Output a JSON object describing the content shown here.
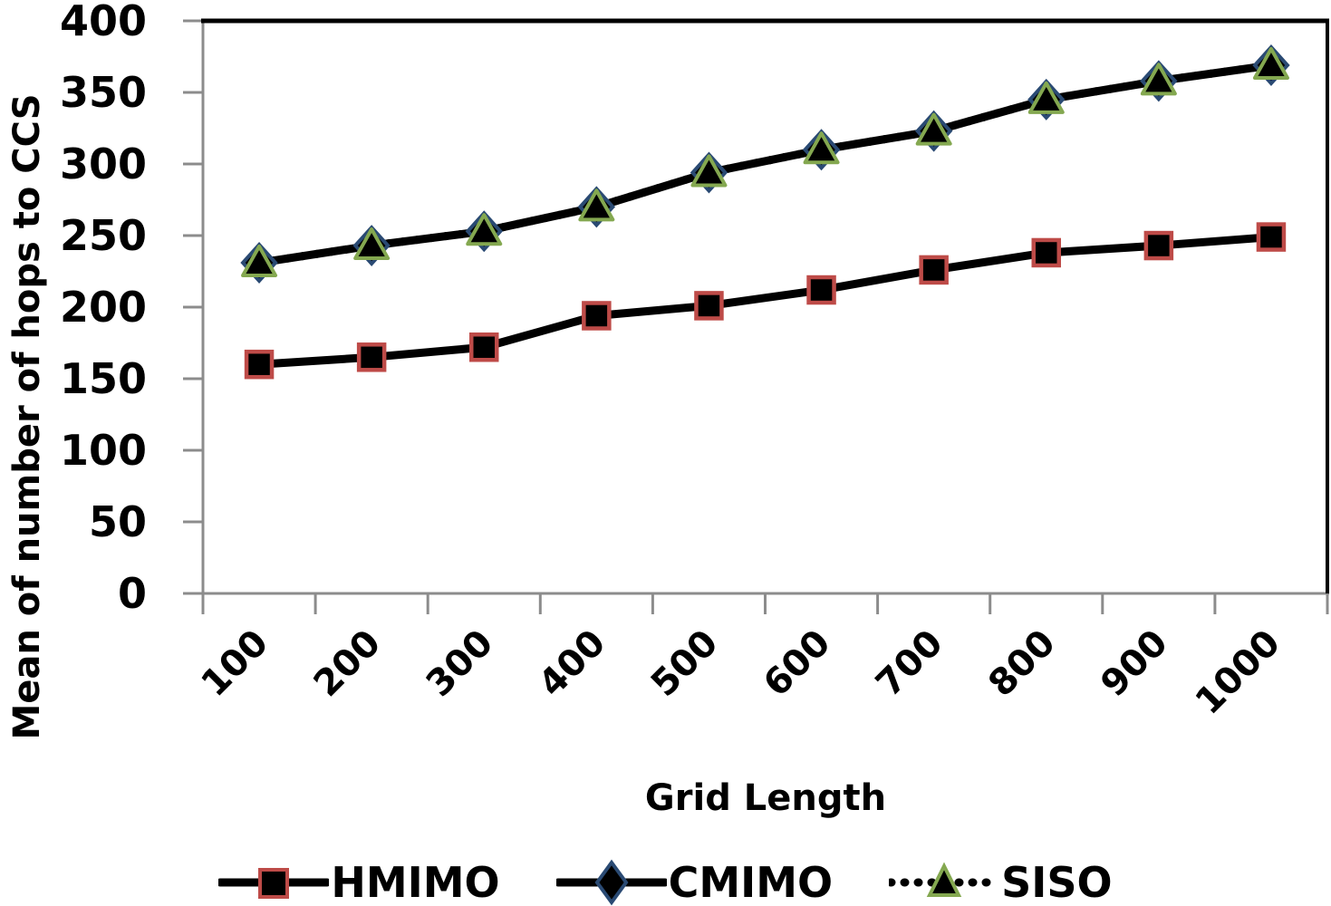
{
  "chart_data": {
    "type": "line",
    "title": "",
    "xlabel": "Grid Length",
    "ylabel": "Mean of number of hops to CCS",
    "x_categories": [
      "100",
      "200",
      "300",
      "400",
      "500",
      "600",
      "700",
      "800",
      "900",
      "1000"
    ],
    "ylim": [
      0,
      400
    ],
    "y_ticks": [
      0,
      50,
      100,
      150,
      200,
      250,
      300,
      350,
      400
    ],
    "grid": false,
    "legend_position": "bottom",
    "series": [
      {
        "name": "HMIMO",
        "marker": "square",
        "marker_border": "#BE4B48",
        "marker_fill": "#000000",
        "line_style": "solid",
        "line_color": "#000000",
        "values": [
          160,
          165,
          172,
          194,
          201,
          212,
          226,
          238,
          243,
          249
        ]
      },
      {
        "name": "CMIMO",
        "marker": "diamond",
        "marker_border": "#2A4A73",
        "marker_fill": "#000000",
        "line_style": "solid",
        "line_color": "#000000",
        "values": [
          231,
          243,
          253,
          270,
          294,
          310,
          323,
          345,
          358,
          369
        ]
      },
      {
        "name": "SISO",
        "marker": "triangle",
        "marker_border": "#84A850",
        "marker_fill": "#000000",
        "line_style": "dotted",
        "line_color": "#000000",
        "values": [
          231,
          243,
          253,
          270,
          294,
          310,
          323,
          345,
          358,
          369
        ]
      }
    ],
    "colors": {
      "axis_line": "#8C8C8C",
      "plot_border": "#000000",
      "text": "#000000",
      "background": "#FFFFFF"
    }
  }
}
